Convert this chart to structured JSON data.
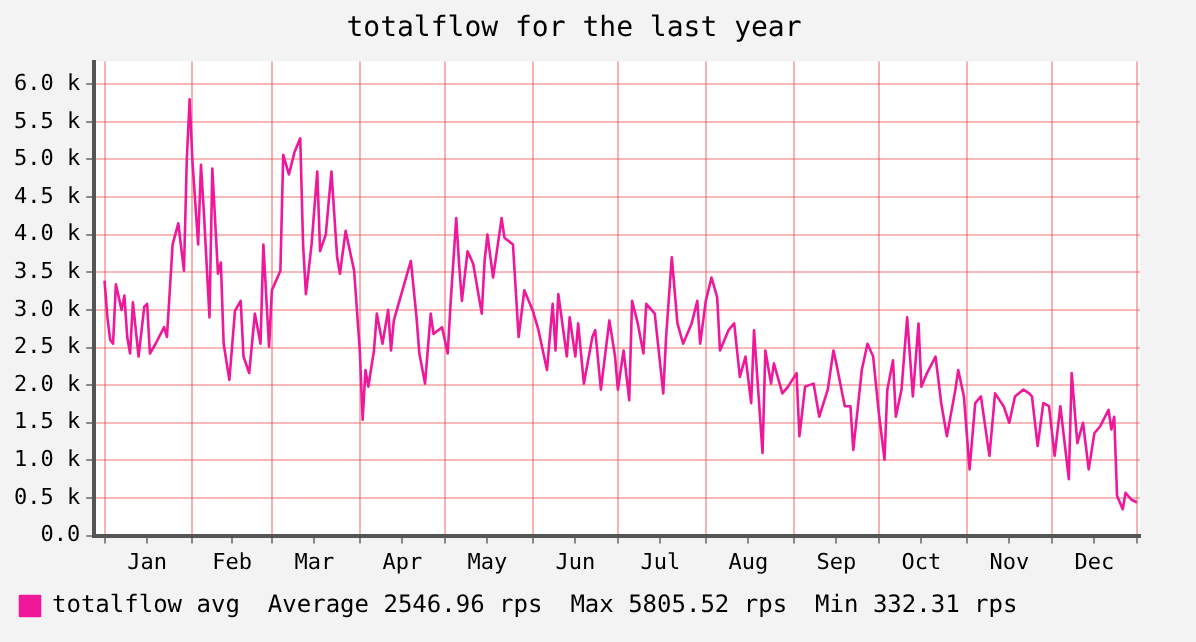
{
  "chart_data": {
    "type": "line",
    "title": "totalflow for the last year",
    "xlim": [
      "--01-01",
      "--12-31"
    ],
    "xticks": [
      {
        "value": "--01-01",
        "label": null
      },
      {
        "value": "--01-16",
        "label": "Jan"
      },
      {
        "value": "--02-01",
        "label": null
      },
      {
        "value": "--02-15",
        "label": "Feb"
      },
      {
        "value": "--03-01",
        "label": null
      },
      {
        "value": "--03-16",
        "label": "Mar"
      },
      {
        "value": "--04-01",
        "label": null
      },
      {
        "value": "--04-16",
        "label": "Apr"
      },
      {
        "value": "--05-01",
        "label": null
      },
      {
        "value": "--05-16",
        "label": "May"
      },
      {
        "value": "--06-01",
        "label": null
      },
      {
        "value": "--06-16",
        "label": "Jun"
      },
      {
        "value": "--07-01",
        "label": null
      },
      {
        "value": "--07-16",
        "label": "Jul"
      },
      {
        "value": "--08-01",
        "label": null
      },
      {
        "value": "--08-16",
        "label": "Aug"
      },
      {
        "value": "--09-01",
        "label": null
      },
      {
        "value": "--09-16",
        "label": "Sep"
      },
      {
        "value": "--10-01",
        "label": null
      },
      {
        "value": "--10-16",
        "label": "Oct"
      },
      {
        "value": "--11-01",
        "label": null
      },
      {
        "value": "--11-16",
        "label": "Nov"
      },
      {
        "value": "--12-01",
        "label": null
      },
      {
        "value": "--12-16",
        "label": "Dec"
      },
      {
        "value": "--12-31",
        "label": null
      }
    ],
    "ylim": [
      0,
      6300
    ],
    "yticks": [
      {
        "value": 0,
        "label": "0.0"
      },
      {
        "value": 500,
        "label": "0.5 k"
      },
      {
        "value": 1000,
        "label": "1.0 k"
      },
      {
        "value": 1500,
        "label": "1.5 k"
      },
      {
        "value": 2000,
        "label": "2.0 k"
      },
      {
        "value": 2500,
        "label": "2.5 k"
      },
      {
        "value": 3000,
        "label": "3.0 k"
      },
      {
        "value": 3500,
        "label": "3.5 k"
      },
      {
        "value": 4000,
        "label": "4.0 k"
      },
      {
        "value": 4500,
        "label": "4.5 k"
      },
      {
        "value": 5000,
        "label": "5.0 k"
      },
      {
        "value": 5500,
        "label": "5.5 k"
      },
      {
        "value": 6000,
        "label": "6.0 k"
      }
    ],
    "grid": true,
    "legend": "bottom left",
    "series": [
      {
        "name": "totalflow avg",
        "color": "#f0189a",
        "x": [
          "--01-01",
          "--01-02",
          "--01-03",
          "--01-04",
          "--01-05",
          "--01-07",
          "--01-08",
          "--01-09",
          "--01-10",
          "--01-11",
          "--01-13",
          "--01-15",
          "--01-16",
          "--01-17",
          "--01-19",
          "--01-22",
          "--01-23",
          "--01-25",
          "--01-27",
          "--01-29",
          "--01-30",
          "--01-31",
          "--02-01",
          "--02-03",
          "--02-04",
          "--02-05",
          "--02-07",
          "--02-08",
          "--02-10",
          "--02-11",
          "--02-12",
          "--02-14",
          "--02-16",
          "--02-18",
          "--02-19",
          "--02-21",
          "--02-23",
          "--02-25",
          "--02-26",
          "--02-28",
          "--03-01",
          "--03-04",
          "--03-05",
          "--03-07",
          "--03-09",
          "--03-11",
          "--03-12",
          "--03-13",
          "--03-15",
          "--03-17",
          "--03-18",
          "--03-20",
          "--03-22",
          "--03-24",
          "--03-25",
          "--03-27",
          "--03-30",
          "--04-01",
          "--04-02",
          "--04-03",
          "--04-04",
          "--04-06",
          "--04-07",
          "--04-09",
          "--04-11",
          "--04-12",
          "--04-13",
          "--04-19",
          "--04-21",
          "--04-22",
          "--04-24",
          "--04-26",
          "--04-27",
          "--04-30",
          "--05-02",
          "--05-03",
          "--05-05",
          "--05-06",
          "--05-07",
          "--05-09",
          "--05-11",
          "--05-14",
          "--05-15",
          "--05-16",
          "--05-18",
          "--05-21",
          "--05-22",
          "--05-25",
          "--05-27",
          "--05-29",
          "--06-01",
          "--06-03",
          "--06-06",
          "--06-08",
          "--06-09",
          "--06-10",
          "--06-13",
          "--06-14",
          "--06-16",
          "--06-17",
          "--06-19",
          "--06-22",
          "--06-23",
          "--06-25",
          "--06-28",
          "--06-30",
          "--07-01",
          "--07-03",
          "--07-05",
          "--07-06",
          "--07-08",
          "--07-10",
          "--07-11",
          "--07-14",
          "--07-17",
          "--07-18",
          "--07-20",
          "--07-22",
          "--07-24",
          "--07-27",
          "--07-29",
          "--07-30",
          "--08-01",
          "--08-03",
          "--08-05",
          "--08-06",
          "--08-09",
          "--08-11",
          "--08-13",
          "--08-15",
          "--08-17",
          "--08-18",
          "--08-21",
          "--08-22",
          "--08-24",
          "--08-25",
          "--08-28",
          "--08-30",
          "--09-02",
          "--09-03",
          "--09-05",
          "--09-08",
          "--09-10",
          "--09-13",
          "--09-15",
          "--09-16",
          "--09-19",
          "--09-21",
          "--09-22",
          "--09-25",
          "--09-27",
          "--09-29",
          "--10-01",
          "--10-03",
          "--10-04",
          "--10-06",
          "--10-07",
          "--10-09",
          "--10-11",
          "--10-13",
          "--10-15",
          "--10-16",
          "--10-18",
          "--10-21",
          "--10-23",
          "--10-25",
          "--10-28",
          "--10-29",
          "--10-31",
          "--11-02",
          "--11-04",
          "--11-06",
          "--11-09",
          "--11-11",
          "--11-14",
          "--11-16",
          "--11-18",
          "--11-21",
          "--11-23",
          "--11-24",
          "--11-26",
          "--11-28",
          "--11-30",
          "--12-02",
          "--12-04",
          "--12-07",
          "--12-08",
          "--12-10",
          "--12-12",
          "--12-14",
          "--12-16",
          "--12-18",
          "--12-21",
          "--12-22",
          "--12-23",
          "--12-24",
          "--12-26",
          "--12-27",
          "--12-29",
          "--12-31"
        ],
        "values": [
          3390,
          2900,
          2600,
          2550,
          3340,
          3000,
          3190,
          2640,
          2420,
          3100,
          2380,
          3040,
          3080,
          2420,
          2550,
          2770,
          2640,
          3870,
          4150,
          3520,
          5000,
          5800,
          4970,
          3870,
          4930,
          4310,
          2900,
          4880,
          3480,
          3630,
          2550,
          2070,
          2990,
          3120,
          2380,
          2160,
          2950,
          2550,
          3870,
          2510,
          3260,
          3520,
          5060,
          4800,
          5100,
          5280,
          3870,
          3210,
          3870,
          4840,
          3780,
          4000,
          4840,
          3700,
          3480,
          4050,
          3520,
          2460,
          1540,
          2200,
          1980,
          2460,
          2950,
          2550,
          3000,
          2460,
          2860,
          3650,
          2900,
          2420,
          2020,
          2950,
          2680,
          2770,
          2420,
          3080,
          4220,
          3610,
          3120,
          3780,
          3610,
          2950,
          3650,
          4000,
          3430,
          4220,
          3960,
          3870,
          2640,
          3260,
          2990,
          2730,
          2200,
          3080,
          2460,
          3210,
          2380,
          2900,
          2380,
          2820,
          2020,
          2640,
          2730,
          1940,
          2860,
          2380,
          1940,
          2460,
          1800,
          3120,
          2820,
          2420,
          3080,
          2950,
          1890,
          2640,
          3700,
          2820,
          2550,
          2820,
          3120,
          2550,
          3120,
          3430,
          3170,
          2460,
          2730,
          2820,
          2110,
          2380,
          1760,
          2730,
          1100,
          2460,
          2020,
          2290,
          1890,
          1980,
          2160,
          1320,
          1980,
          2020,
          1580,
          1940,
          2460,
          2290,
          1720,
          1720,
          1140,
          2200,
          2550,
          2380,
          1630,
          1010,
          1940,
          2330,
          1580,
          1940,
          2900,
          1850,
          2820,
          1980,
          2160,
          2380,
          1760,
          1320,
          1940,
          2200,
          1850,
          880,
          1760,
          1850,
          1060,
          1890,
          1720,
          1500,
          1850,
          1940,
          1890,
          1850,
          1190,
          1760,
          1720,
          1060,
          1720,
          750,
          2160,
          1230,
          1500,
          880,
          1360,
          1450,
          1670,
          1410,
          1580,
          530,
          350,
          570,
          480,
          440
        ]
      }
    ],
    "annotations": [
      "Average 2546.96 rps",
      "Max 5805.52 rps",
      "Min 332.31 rps"
    ]
  }
}
